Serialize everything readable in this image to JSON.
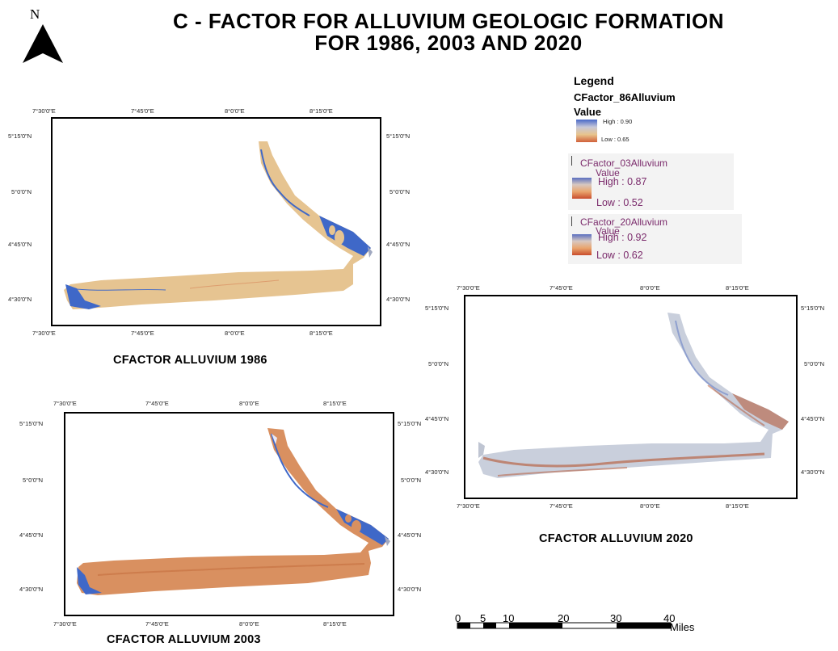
{
  "title": {
    "line1": "C - FACTOR  FOR ALLUVIUM GEOLOGIC FORMATION",
    "line2": "FOR 1986, 2003 AND 2020"
  },
  "north_arrow": {
    "letter": "N",
    "icon": "north-arrow-icon"
  },
  "maps": [
    {
      "caption": "CFACTOR ALLUVIUM 1986",
      "top_labels": [
        "7°30'0\"E",
        "7°45'0\"E",
        "8°0'0\"E",
        "8°15'0\"E"
      ],
      "bottom_labels": [
        "7°30'0\"E",
        "7°45'0\"E",
        "8°0'0\"E",
        "8°15'0\"E"
      ],
      "left_labels": [
        "5°15'0\"N",
        "5°0'0\"N",
        "4°45'0\"N",
        "4°30'0\"N"
      ],
      "right_labels": [
        "5°15'0\"N",
        "5°0'0\"N",
        "4°45'0\"N",
        "4°30'0\"N"
      ],
      "colors": {
        "main": "#e6c491",
        "river": "#3f68c8",
        "accent": "#d98d5f"
      }
    },
    {
      "caption": "CFACTOR ALLUVIUM 2003",
      "top_labels": [
        "7°30'0\"E",
        "7°45'0\"E",
        "8°0'0\"E",
        "8°15'0\"E"
      ],
      "bottom_labels": [
        "7°30'0\"E",
        "7°45'0\"E",
        "8°0'0\"E",
        "8°15'0\"E"
      ],
      "left_labels": [
        "5°15'0\"N",
        "5°0'0\"N",
        "4°45'0\"N",
        "4°30'0\"N"
      ],
      "right_labels": [
        "5°15'0\"N",
        "5°0'0\"N",
        "4°45'0\"N",
        "4°30'0\"N"
      ],
      "colors": {
        "main": "#d99060",
        "river": "#3f68c8",
        "accent": "#c4703f"
      }
    },
    {
      "caption": "CFACTOR ALLUVIUM 2020",
      "top_labels": [
        "7°30'0\"E",
        "7°45'0\"E",
        "8°0'0\"E",
        "8°15'0\"E"
      ],
      "bottom_labels": [
        "7°30'0\"E",
        "7°45'0\"E",
        "8°0'0\"E",
        "8°15'0\"E"
      ],
      "left_labels": [
        "5°15'0\"N",
        "5°0'0\"N",
        "4°45'0\"N",
        "4°30'0\"N"
      ],
      "right_labels": [
        "5°15'0\"N",
        "5°0'0\"N",
        "4°45'0\"N",
        "4°30'0\"N"
      ],
      "colors": {
        "main": "#c9cfdc",
        "river": "#8fa0cf",
        "accent": "#b5542f"
      }
    }
  ],
  "legend": {
    "title": "Legend",
    "items": [
      {
        "layer": "CFactor_86Alluvium",
        "value_label": "Value",
        "high": "High : 0.90",
        "low": "Low : 0.65"
      },
      {
        "layer": "CFactor_03Alluvium",
        "value_label": "Value",
        "high": "High : 0.87",
        "low": "Low : 0.52"
      },
      {
        "layer": "CFactor_20Alluvium",
        "value_label": "Value",
        "high": "High : 0.92",
        "low": "Low : 0.62"
      }
    ]
  },
  "scale_bar": {
    "labels": [
      "0",
      "5",
      "10",
      "20",
      "30",
      "40"
    ],
    "unit": "Miles"
  }
}
